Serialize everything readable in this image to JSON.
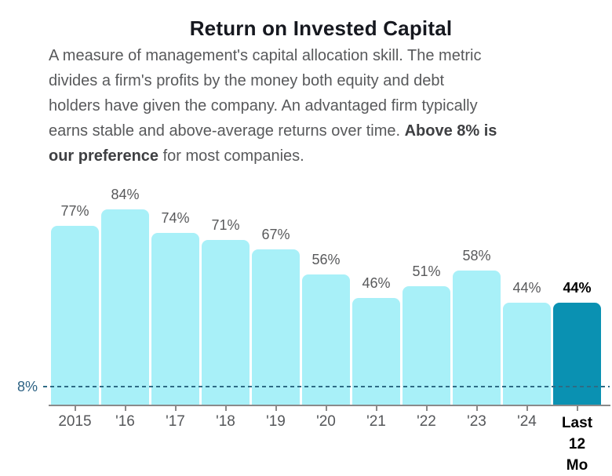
{
  "title": "Return on Invested Capital",
  "description": {
    "lines": [
      {
        "pre": "A measure of management's capital allocation skill. The metric",
        "bold": "",
        "post": ""
      },
      {
        "pre": "divides a firm's profits by the money both equity and debt",
        "bold": "",
        "post": ""
      },
      {
        "pre": "holders have given the company. An advantaged firm typically",
        "bold": "",
        "post": ""
      },
      {
        "pre": "earns stable and above-average returns over time. ",
        "bold": "Above 8% is",
        "post": ""
      },
      {
        "pre": "",
        "bold": "our preference",
        "post": " for most companies."
      }
    ]
  },
  "chart_data": {
    "type": "bar",
    "title": "Return on Invested Capital",
    "categories": [
      "2015",
      "'16",
      "'17",
      "'18",
      "'19",
      "'20",
      "'21",
      "'22",
      "'23",
      "'24",
      "Last 12 Mo"
    ],
    "values": [
      77,
      84,
      74,
      71,
      67,
      56,
      46,
      51,
      58,
      44,
      44
    ],
    "value_labels": [
      "77%",
      "84%",
      "74%",
      "71%",
      "67%",
      "56%",
      "46%",
      "51%",
      "58%",
      "44%",
      "44%"
    ],
    "highlight_index": 10,
    "reference_line": {
      "value": 8,
      "label": "8%"
    },
    "ylim": [
      0,
      94
    ],
    "grid": false,
    "legend": "none",
    "colors": {
      "bar": "#a8f0f8",
      "bar_highlight": "#0a91b2",
      "reference_line": "#2e6b85",
      "reference_label": "#2d6284",
      "axis": "#8a8a8a",
      "value_label": "#58595b",
      "value_label_highlight": "#000000",
      "x_label": "#55575a",
      "x_label_highlight": "#000000"
    }
  }
}
